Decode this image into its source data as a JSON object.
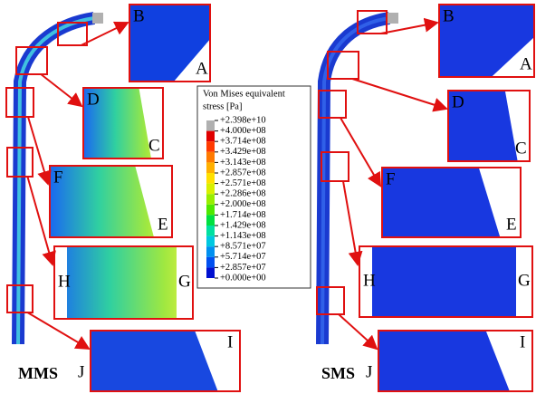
{
  "legend": {
    "title_lines": [
      "Von Mises equivalent",
      "stress [Pa]"
    ],
    "levels": [
      "+2.398e+10",
      "+4.000e+08",
      "+3.714e+08",
      "+3.429e+08",
      "+3.143e+08",
      "+2.857e+08",
      "+2.571e+08",
      "+2.286e+08",
      "+2.000e+08",
      "+1.714e+08",
      "+1.429e+08",
      "+1.143e+08",
      "+8.571e+07",
      "+5.714e+07",
      "+2.857e+07",
      "+0.000e+00"
    ],
    "colors": [
      "#b0b0b0",
      "#e00000",
      "#ff3a00",
      "#ff7a00",
      "#ffb000",
      "#ffe000",
      "#d8f000",
      "#98ee00",
      "#4ee800",
      "#00e040",
      "#00e0a0",
      "#00c8e0",
      "#0090f0",
      "#0050f0",
      "#0010d0"
    ]
  },
  "panels": [
    {
      "name": "MMS",
      "callouts": [
        [
          "B",
          "A"
        ],
        [
          "D",
          "C"
        ],
        [
          "F",
          "E"
        ],
        [
          "H",
          "G"
        ],
        [
          "J",
          "I"
        ]
      ]
    },
    {
      "name": "SMS",
      "callouts": [
        [
          "B",
          "A"
        ],
        [
          "D",
          "C"
        ],
        [
          "F",
          "E"
        ],
        [
          "H",
          "G"
        ],
        [
          "J",
          "I"
        ]
      ]
    }
  ]
}
